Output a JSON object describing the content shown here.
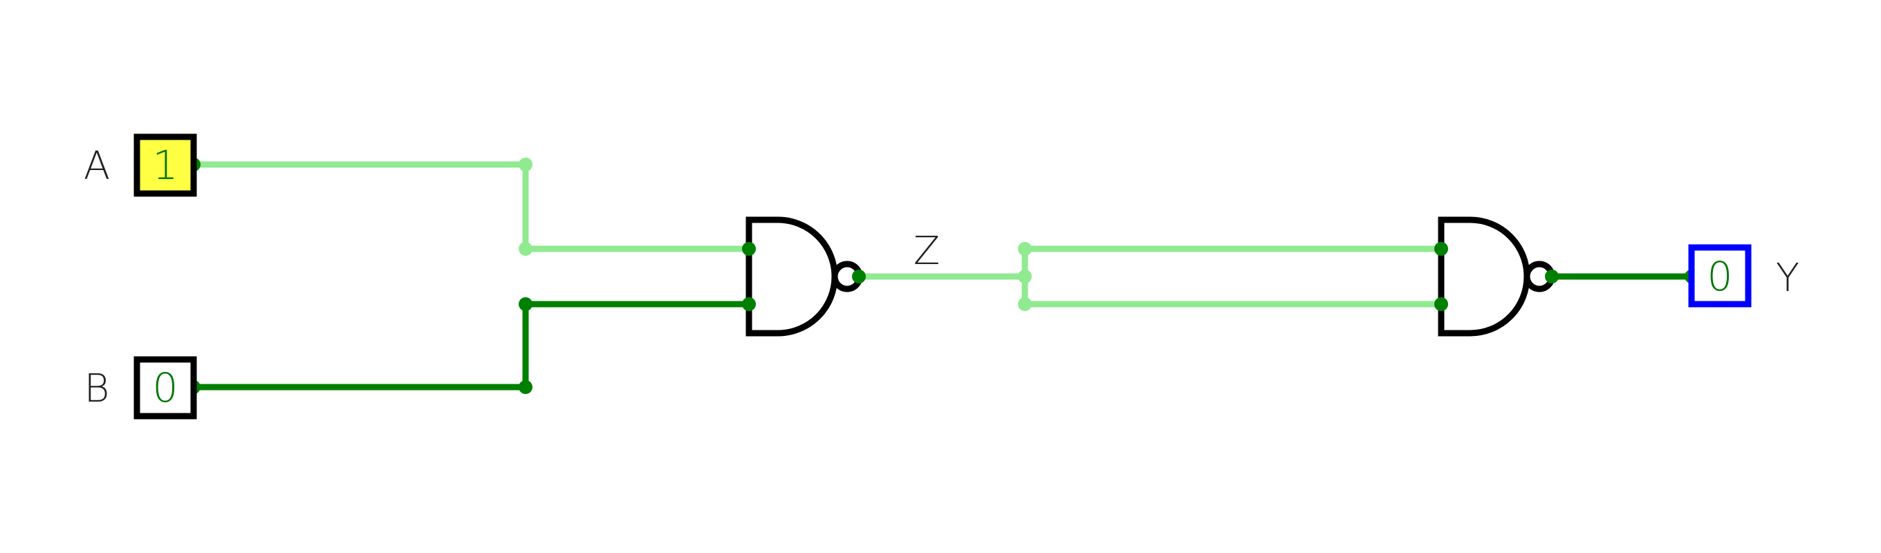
{
  "circuit": {
    "inputs": [
      {
        "label": "A",
        "value": "1",
        "fill": "#ffff44"
      },
      {
        "label": "B",
        "value": "0",
        "fill": "#ffffff"
      }
    ],
    "intermediate": {
      "label": "Z"
    },
    "output": {
      "label": "Y",
      "value": "0",
      "border": "#0000ff"
    },
    "gates": [
      {
        "type": "NAND",
        "name": "gate-1"
      },
      {
        "type": "NAND",
        "name": "gate-2"
      }
    ]
  },
  "colors": {
    "wire_high": "#90ea90",
    "wire_low": "#008000",
    "gate_stroke": "#000000",
    "box_stroke": "#000000",
    "output_border": "#0000ff",
    "input_high_fill": "#ffff44",
    "value_text": "#007700"
  }
}
